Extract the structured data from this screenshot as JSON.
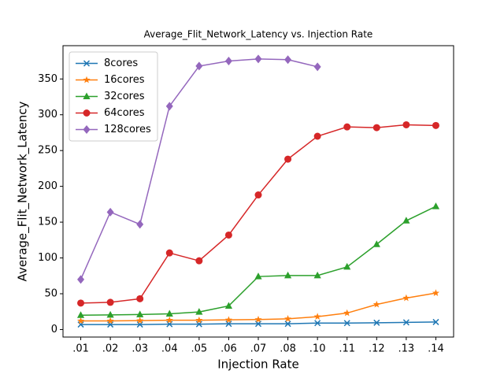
{
  "chart_data": {
    "type": "line",
    "title": "Average_Flit_Network_Latency vs. Injection Rate",
    "x_label": "Injection Rate",
    "y_label": "Average_Flit_Network_Latency",
    "categories": [
      ".01",
      ".02",
      ".03",
      ".04",
      ".05",
      ".06",
      ".07",
      ".08",
      ".10",
      ".11",
      ".12",
      ".13",
      ".14"
    ],
    "series": [
      {
        "name": "8cores",
        "color": "#1f77b4",
        "marker": "x",
        "values": [
          7,
          7,
          7,
          7.5,
          7.5,
          8,
          8,
          8,
          9,
          9,
          9.5,
          10,
          10.5
        ]
      },
      {
        "name": "16cores",
        "color": "#ff7f0e",
        "marker": "star",
        "values": [
          12,
          12,
          12.5,
          13,
          13,
          13.5,
          14,
          15,
          18,
          23,
          35,
          44,
          51
        ]
      },
      {
        "name": "32cores",
        "color": "#2ca02c",
        "marker": "triangle",
        "values": [
          20,
          20.5,
          21,
          22,
          24.5,
          33,
          74,
          75.5,
          75.5,
          87.5,
          119,
          152,
          172
        ]
      },
      {
        "name": "64cores",
        "color": "#d62728",
        "marker": "circle",
        "values": [
          37,
          38,
          43,
          107,
          96,
          132,
          188,
          238,
          270,
          283,
          282,
          286,
          285
        ]
      },
      {
        "name": "128cores",
        "color": "#9467bd",
        "marker": "diamond",
        "values": [
          70,
          164,
          147,
          312,
          368,
          375,
          378,
          377,
          367,
          null,
          null,
          null,
          null
        ]
      }
    ],
    "ylim": [
      -10.5,
      396.5
    ],
    "yticks": [
      0,
      50,
      100,
      150,
      200,
      250,
      300,
      350
    ],
    "legend": "upper left"
  }
}
